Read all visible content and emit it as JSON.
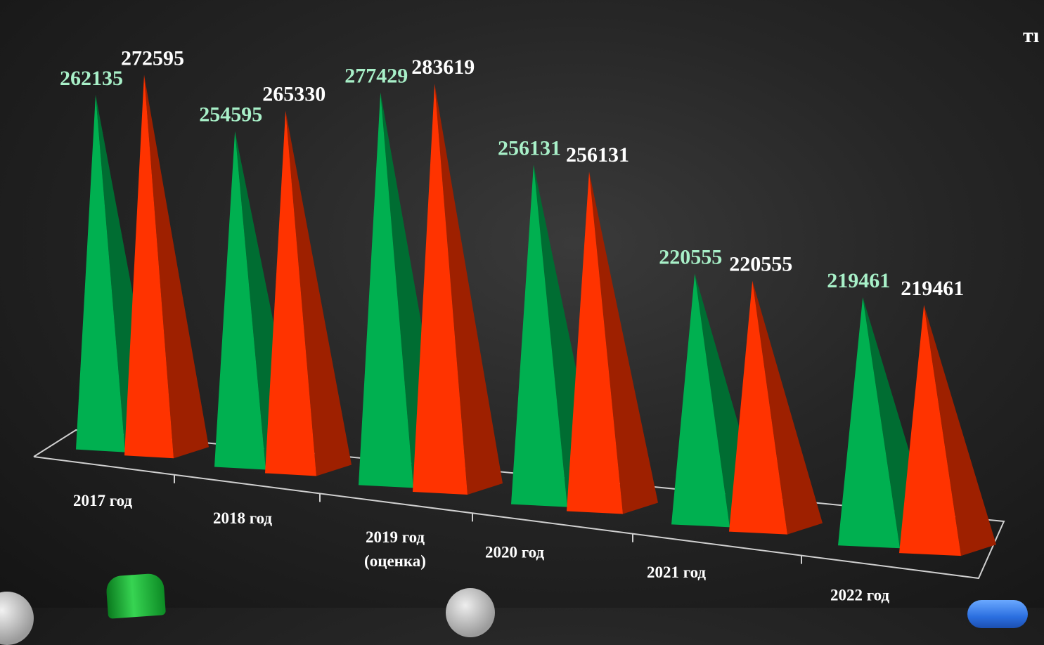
{
  "corner_fragment": "тı",
  "chart_data": {
    "type": "bar",
    "shape": "3d-pyramid",
    "categories": [
      "2017 год",
      "2018 год",
      "2019 год (оценка)",
      "2020 год",
      "2021 год",
      "2022 год"
    ],
    "category_lines": [
      [
        "2017 год"
      ],
      [
        "2018 год"
      ],
      [
        "2019 год",
        "(оценка)"
      ],
      [
        "2020 год"
      ],
      [
        "2021 год"
      ],
      [
        "2022 год"
      ]
    ],
    "series": [
      {
        "color": "#00b050",
        "label_color": "#a8f0c8",
        "values": [
          262135,
          254595,
          277429,
          256131,
          220555,
          219461
        ]
      },
      {
        "color": "#ff3300",
        "label_color": "#ffffff",
        "values": [
          272595,
          265330,
          283619,
          256131,
          220555,
          219461
        ]
      }
    ],
    "data_labels": [
      [
        "262135",
        "254595",
        "277429",
        "256131",
        "220555",
        "219461"
      ],
      [
        "272595",
        "265330",
        "283619",
        "256131",
        "220555",
        "219461"
      ]
    ],
    "legend": "none",
    "grid": false
  }
}
